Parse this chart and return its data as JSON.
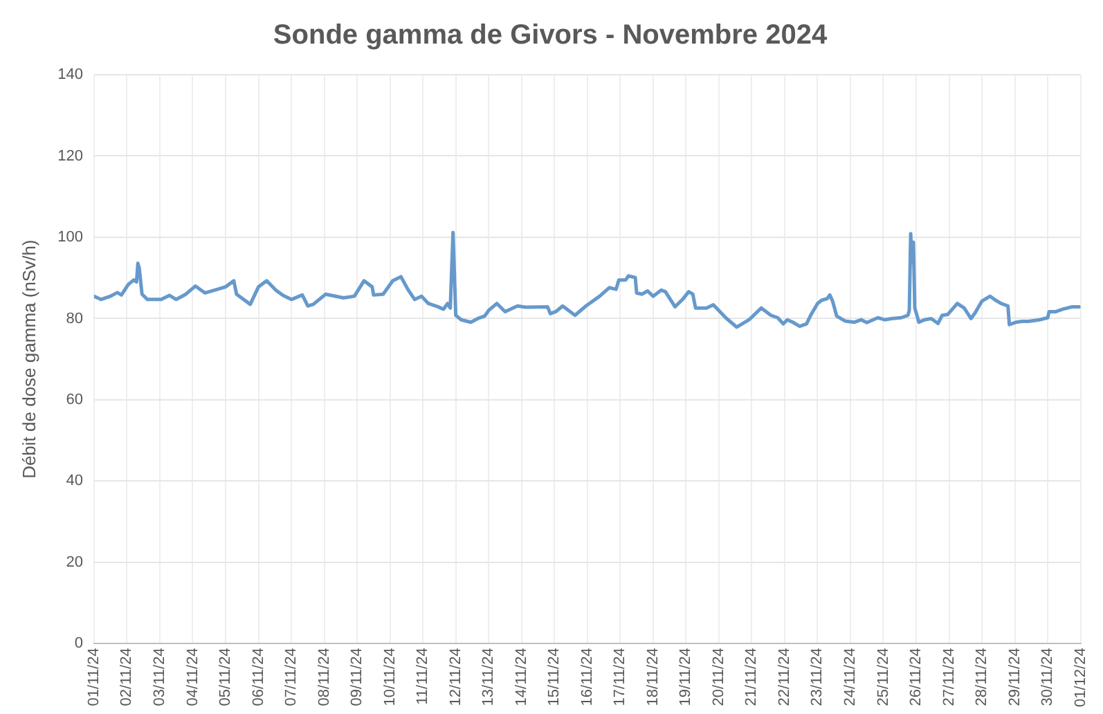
{
  "chart_data": {
    "type": "line",
    "title": "Sonde gamma de Givors - Novembre 2024",
    "ylabel": "Débit de dose gamma (nSv/h)",
    "xlim": [
      "2024-11-01",
      "2024-12-01"
    ],
    "xticks": [
      {
        "value": "2024-11-01",
        "label": "01/11/24"
      },
      {
        "value": "2024-11-02",
        "label": "02/11/24"
      },
      {
        "value": "2024-11-03",
        "label": "03/11/24"
      },
      {
        "value": "2024-11-04",
        "label": "04/11/24"
      },
      {
        "value": "2024-11-05",
        "label": "05/11/24"
      },
      {
        "value": "2024-11-06",
        "label": "06/11/24"
      },
      {
        "value": "2024-11-07",
        "label": "07/11/24"
      },
      {
        "value": "2024-11-08",
        "label": "08/11/24"
      },
      {
        "value": "2024-11-09",
        "label": "09/11/24"
      },
      {
        "value": "2024-11-10",
        "label": "10/11/24"
      },
      {
        "value": "2024-11-11",
        "label": "11/11/24"
      },
      {
        "value": "2024-11-12",
        "label": "12/11/24"
      },
      {
        "value": "2024-11-13",
        "label": "13/11/24"
      },
      {
        "value": "2024-11-14",
        "label": "14/11/24"
      },
      {
        "value": "2024-11-15",
        "label": "15/11/24"
      },
      {
        "value": "2024-11-16",
        "label": "16/11/24"
      },
      {
        "value": "2024-11-17",
        "label": "17/11/24"
      },
      {
        "value": "2024-11-18",
        "label": "18/11/24"
      },
      {
        "value": "2024-11-19",
        "label": "19/11/24"
      },
      {
        "value": "2024-11-20",
        "label": "20/11/24"
      },
      {
        "value": "2024-11-21",
        "label": "21/11/24"
      },
      {
        "value": "2024-11-22",
        "label": "22/11/24"
      },
      {
        "value": "2024-11-23",
        "label": "23/11/24"
      },
      {
        "value": "2024-11-24",
        "label": "24/11/24"
      },
      {
        "value": "2024-11-25",
        "label": "25/11/24"
      },
      {
        "value": "2024-11-26",
        "label": "26/11/24"
      },
      {
        "value": "2024-11-27",
        "label": "27/11/24"
      },
      {
        "value": "2024-11-28",
        "label": "28/11/24"
      },
      {
        "value": "2024-11-29",
        "label": "29/11/24"
      },
      {
        "value": "2024-11-30",
        "label": "30/11/24"
      },
      {
        "value": "2024-12-01",
        "label": "01/12/24"
      }
    ],
    "ylim": [
      0,
      140
    ],
    "yticks": [
      0,
      20,
      40,
      60,
      80,
      100,
      120,
      140
    ],
    "grid": true,
    "legend": false,
    "marker": "none",
    "line_style": "solid",
    "series": [
      {
        "color": "#6699cc",
        "x": [
          "2024-11-01T00:00",
          "2024-11-01T05:00",
          "2024-11-01T12:00",
          "2024-11-01T17:00",
          "2024-11-01T20:00",
          "2024-11-02T01:00",
          "2024-11-02T05:00",
          "2024-11-02T07:00",
          "2024-11-02T08:00",
          "2024-11-02T09:00",
          "2024-11-02T11:00",
          "2024-11-02T15:00",
          "2024-11-03T01:00",
          "2024-11-03T07:00",
          "2024-11-03T12:00",
          "2024-11-03T19:00",
          "2024-11-04T02:00",
          "2024-11-04T09:00",
          "2024-11-04T16:00",
          "2024-11-05T00:00",
          "2024-11-05T06:00",
          "2024-11-05T08:00",
          "2024-11-05T18:00",
          "2024-11-06T00:00",
          "2024-11-06T06:00",
          "2024-11-06T13:00",
          "2024-11-06T18:00",
          "2024-11-07T00:00",
          "2024-11-07T08:00",
          "2024-11-07T12:00",
          "2024-11-07T16:00",
          "2024-11-08T01:00",
          "2024-11-08T14:00",
          "2024-11-08T22:00",
          "2024-11-09T05:00",
          "2024-11-09T11:00",
          "2024-11-09T12:00",
          "2024-11-09T19:00",
          "2024-11-10T02:00",
          "2024-11-10T08:00",
          "2024-11-10T13:00",
          "2024-11-10T18:00",
          "2024-11-10T23:00",
          "2024-11-11T04:00",
          "2024-11-11T11:00",
          "2024-11-11T15:00",
          "2024-11-11T18:00",
          "2024-11-11T20:00",
          "2024-11-11T22:00",
          "2024-11-12T00:00",
          "2024-11-12T04:00",
          "2024-11-12T11:00",
          "2024-11-12T16:00",
          "2024-11-12T21:00",
          "2024-11-13T00:00",
          "2024-11-13T06:00",
          "2024-11-13T12:00",
          "2024-11-13T21:00",
          "2024-11-14T03:00",
          "2024-11-14T19:00",
          "2024-11-14T21:00",
          "2024-11-15T01:00",
          "2024-11-15T06:00",
          "2024-11-15T15:00",
          "2024-11-15T23:00",
          "2024-11-16T09:00",
          "2024-11-16T16:00",
          "2024-11-16T21:00",
          "2024-11-16T23:00",
          "2024-11-17T04:00",
          "2024-11-17T06:00",
          "2024-11-17T11:00",
          "2024-11-17T12:00",
          "2024-11-17T16:00",
          "2024-11-17T20:00",
          "2024-11-18T00:00",
          "2024-11-18T06:00",
          "2024-11-18T09:00",
          "2024-11-18T16:00",
          "2024-11-18T22:00",
          "2024-11-19T02:00",
          "2024-11-19T05:00",
          "2024-11-19T07:00",
          "2024-11-19T15:00",
          "2024-11-19T20:00",
          "2024-11-20T05:00",
          "2024-11-20T13:00",
          "2024-11-20T22:00",
          "2024-11-21T07:00",
          "2024-11-21T14:00",
          "2024-11-21T19:00",
          "2024-11-21T23:00",
          "2024-11-22T02:00",
          "2024-11-22T06:00",
          "2024-11-22T11:00",
          "2024-11-22T16:00",
          "2024-11-22T19:00",
          "2024-11-23T00:00",
          "2024-11-23T03:00",
          "2024-11-23T07:00",
          "2024-11-23T09:00",
          "2024-11-23T11:00",
          "2024-11-23T14:00",
          "2024-11-23T20:00",
          "2024-11-24T03:00",
          "2024-11-24T08:00",
          "2024-11-24T12:00",
          "2024-11-24T20:00",
          "2024-11-25T01:00",
          "2024-11-25T06:00",
          "2024-11-25T13:00",
          "2024-11-25T18:00",
          "2024-11-25T19:00",
          "2024-11-25T20:00",
          "2024-11-25T21:00",
          "2024-11-25T22:00",
          "2024-11-25T23:00",
          "2024-11-26T02:00",
          "2024-11-26T06:00",
          "2024-11-26T11:00",
          "2024-11-26T16:00",
          "2024-11-26T19:00",
          "2024-11-26T23:00",
          "2024-11-27T06:00",
          "2024-11-27T11:00",
          "2024-11-27T16:00",
          "2024-11-27T19:00",
          "2024-11-28T00:00",
          "2024-11-28T06:00",
          "2024-11-28T10:00",
          "2024-11-28T14:00",
          "2024-11-28T19:00",
          "2024-11-28T20:00",
          "2024-11-29T01:00",
          "2024-11-29T05:00",
          "2024-11-29T10:00",
          "2024-11-29T18:00",
          "2024-11-30T00:00",
          "2024-11-30T01:00",
          "2024-11-30T06:00",
          "2024-11-30T11:00",
          "2024-11-30T18:00",
          "2024-11-30T23:00"
        ],
        "values": [
          85.5,
          84.7,
          85.5,
          86.4,
          85.8,
          88.4,
          89.5,
          89.0,
          93.6,
          92.4,
          86.0,
          84.7,
          84.7,
          85.7,
          84.7,
          86.0,
          88.0,
          86.3,
          87.0,
          87.8,
          89.3,
          86.0,
          83.5,
          87.8,
          89.3,
          86.9,
          85.7,
          84.7,
          85.8,
          83.1,
          83.5,
          86.0,
          85.1,
          85.5,
          89.3,
          87.8,
          85.8,
          86.0,
          89.3,
          90.3,
          87.2,
          84.7,
          85.5,
          83.7,
          82.9,
          82.3,
          83.7,
          82.6,
          101.2,
          80.8,
          79.7,
          79.1,
          80.0,
          80.6,
          82.0,
          83.7,
          81.7,
          83.1,
          82.8,
          82.9,
          81.2,
          81.7,
          83.1,
          80.8,
          83.1,
          85.5,
          87.6,
          87.2,
          89.5,
          89.5,
          90.5,
          90.1,
          86.3,
          86.0,
          86.8,
          85.5,
          87.0,
          86.6,
          82.9,
          84.9,
          86.6,
          86.0,
          82.6,
          82.6,
          83.4,
          80.2,
          77.9,
          79.7,
          82.6,
          80.8,
          80.2,
          78.7,
          79.7,
          79.1,
          78.1,
          78.7,
          80.8,
          83.7,
          84.5,
          84.9,
          85.8,
          84.3,
          80.6,
          79.4,
          79.1,
          79.7,
          79.0,
          80.2,
          79.7,
          80.0,
          80.2,
          80.8,
          82.0,
          100.9,
          93.6,
          98.8,
          82.6,
          79.1,
          79.7,
          80.0,
          78.8,
          80.8,
          81.0,
          83.7,
          82.6,
          80.0,
          81.4,
          84.3,
          85.5,
          84.5,
          83.7,
          83.1,
          78.5,
          79.1,
          79.3,
          79.3,
          79.7,
          80.2,
          81.7,
          81.7,
          82.3,
          82.9,
          82.9
        ]
      }
    ]
  }
}
